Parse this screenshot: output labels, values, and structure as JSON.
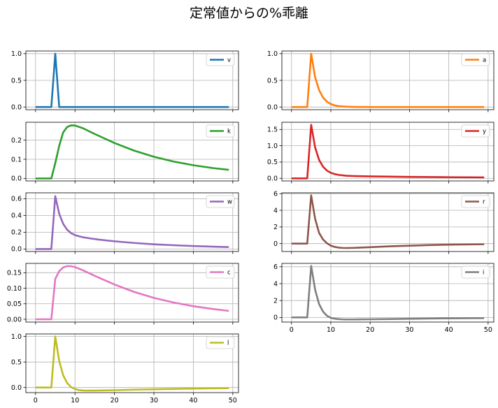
{
  "title": "定常値からの%乖離",
  "chart_data": [
    {
      "type": "line",
      "name": "v",
      "color": "#1f77b4",
      "ylim": [
        -0.05,
        1.05
      ],
      "yticks": [
        0.0,
        0.5,
        1.0
      ],
      "ytick_labels": [
        "0.0",
        "0.5",
        "1.0"
      ],
      "series": [
        {
          "name": "v",
          "x": [
            0,
            4,
            5,
            6,
            49
          ],
          "values": [
            0,
            0,
            1.0,
            0,
            0
          ]
        }
      ]
    },
    {
      "type": "line",
      "name": "a",
      "color": "#ff7f0e",
      "ylim": [
        -0.05,
        1.05
      ],
      "yticks": [
        0.0,
        0.5,
        1.0
      ],
      "ytick_labels": [
        "0.0",
        "0.5",
        "1.0"
      ],
      "series": [
        {
          "name": "a",
          "x": [
            0,
            4,
            5,
            6,
            7,
            8,
            9,
            10,
            11,
            12,
            14,
            16,
            20,
            49
          ],
          "values": [
            0,
            0,
            1.0,
            0.56,
            0.32,
            0.18,
            0.1,
            0.055,
            0.03,
            0.017,
            0.006,
            0.002,
            0,
            0
          ]
        }
      ]
    },
    {
      "type": "line",
      "name": "k",
      "color": "#2ca02c",
      "ylim": [
        -0.013,
        0.293
      ],
      "yticks": [
        0.0,
        0.1,
        0.2
      ],
      "ytick_labels": [
        "0.0",
        "0.1",
        "0.2"
      ],
      "series": [
        {
          "name": "k",
          "x": [
            0,
            4,
            5,
            6,
            7,
            8,
            9,
            10,
            12,
            15,
            20,
            25,
            30,
            35,
            40,
            45,
            49
          ],
          "values": [
            0,
            0,
            0.08,
            0.17,
            0.24,
            0.268,
            0.277,
            0.276,
            0.262,
            0.232,
            0.185,
            0.145,
            0.113,
            0.088,
            0.069,
            0.054,
            0.045
          ]
        }
      ]
    },
    {
      "type": "line",
      "name": "y",
      "color": "#d62728",
      "ylim": [
        -0.08,
        1.72
      ],
      "yticks": [
        0.0,
        0.5,
        1.0,
        1.5
      ],
      "ytick_labels": [
        "0.0",
        "0.5",
        "1.0",
        "1.5"
      ],
      "series": [
        {
          "name": "y",
          "x": [
            0,
            4,
            5,
            6,
            7,
            8,
            9,
            10,
            11,
            12,
            14,
            16,
            20,
            30,
            40,
            49
          ],
          "values": [
            0,
            0,
            1.64,
            0.95,
            0.57,
            0.36,
            0.24,
            0.17,
            0.13,
            0.105,
            0.08,
            0.07,
            0.06,
            0.045,
            0.035,
            0.028
          ]
        }
      ]
    },
    {
      "type": "line",
      "name": "w",
      "color": "#9467bd",
      "ylim": [
        -0.03,
        0.67
      ],
      "yticks": [
        0.0,
        0.2,
        0.4,
        0.6
      ],
      "ytick_labels": [
        "0.0",
        "0.2",
        "0.4",
        "0.6"
      ],
      "series": [
        {
          "name": "w",
          "x": [
            0,
            4,
            5,
            6,
            7,
            8,
            9,
            10,
            12,
            14,
            16,
            20,
            25,
            30,
            35,
            40,
            45,
            49
          ],
          "values": [
            0,
            0,
            0.63,
            0.42,
            0.3,
            0.23,
            0.19,
            0.165,
            0.14,
            0.125,
            0.112,
            0.092,
            0.072,
            0.056,
            0.045,
            0.035,
            0.028,
            0.023
          ]
        }
      ]
    },
    {
      "type": "line",
      "name": "r",
      "color": "#8c564b",
      "ylim": [
        -0.95,
        6.1
      ],
      "yticks": [
        0,
        2,
        4,
        6
      ],
      "ytick_labels": [
        "0",
        "2",
        "4",
        "6"
      ],
      "series": [
        {
          "name": "r",
          "x": [
            0,
            4,
            5,
            6,
            7,
            8,
            9,
            10,
            11,
            12,
            13,
            14,
            16,
            20,
            25,
            30,
            35,
            40,
            45,
            49
          ],
          "values": [
            0,
            0,
            5.8,
            3.0,
            1.3,
            0.5,
            0.05,
            -0.25,
            -0.4,
            -0.48,
            -0.52,
            -0.53,
            -0.51,
            -0.43,
            -0.33,
            -0.25,
            -0.18,
            -0.13,
            -0.1,
            -0.08
          ]
        }
      ]
    },
    {
      "type": "line",
      "name": "c",
      "color": "#e377c2",
      "ylim": [
        -0.009,
        0.18
      ],
      "yticks": [
        0.0,
        0.05,
        0.1,
        0.15
      ],
      "ytick_labels": [
        "0.00",
        "0.05",
        "0.10",
        "0.15"
      ],
      "series": [
        {
          "name": "c",
          "x": [
            0,
            4,
            5,
            6,
            7,
            8,
            9,
            10,
            12,
            15,
            20,
            25,
            30,
            35,
            40,
            45,
            49
          ],
          "values": [
            0,
            0,
            0.13,
            0.155,
            0.167,
            0.171,
            0.171,
            0.168,
            0.158,
            0.14,
            0.112,
            0.088,
            0.069,
            0.054,
            0.042,
            0.033,
            0.027
          ]
        }
      ]
    },
    {
      "type": "line",
      "name": "i",
      "color": "#7f7f7f",
      "ylim": [
        -0.55,
        6.4
      ],
      "yticks": [
        0,
        2,
        4,
        6
      ],
      "ytick_labels": [
        "0",
        "2",
        "4",
        "6"
      ],
      "series": [
        {
          "name": "i",
          "x": [
            0,
            4,
            5,
            6,
            7,
            8,
            9,
            10,
            11,
            12,
            13,
            14,
            16,
            20,
            25,
            30,
            35,
            40,
            45,
            49
          ],
          "values": [
            0,
            0,
            6.1,
            3.3,
            1.6,
            0.7,
            0.2,
            -0.05,
            -0.15,
            -0.2,
            -0.23,
            -0.24,
            -0.24,
            -0.22,
            -0.19,
            -0.16,
            -0.13,
            -0.11,
            -0.09,
            -0.08
          ]
        }
      ]
    },
    {
      "type": "line",
      "name": "l",
      "color": "#bcbd22",
      "ylim": [
        -0.1,
        1.05
      ],
      "yticks": [
        0.0,
        0.5,
        1.0
      ],
      "ytick_labels": [
        "0.0",
        "0.5",
        "1.0"
      ],
      "series": [
        {
          "name": "l",
          "x": [
            0,
            4,
            5,
            6,
            7,
            8,
            9,
            10,
            11,
            12,
            14,
            16,
            20,
            25,
            30,
            35,
            40,
            45,
            49
          ],
          "values": [
            0,
            0,
            1.0,
            0.52,
            0.24,
            0.09,
            0.01,
            -0.03,
            -0.05,
            -0.058,
            -0.06,
            -0.058,
            -0.052,
            -0.042,
            -0.034,
            -0.027,
            -0.021,
            -0.016,
            -0.012
          ]
        }
      ]
    }
  ],
  "xlim": [
    -2.45,
    51.45
  ],
  "xticks": [
    0,
    10,
    20,
    30,
    40,
    50
  ],
  "xtick_labels": [
    "0",
    "10",
    "20",
    "30",
    "40",
    "50"
  ]
}
